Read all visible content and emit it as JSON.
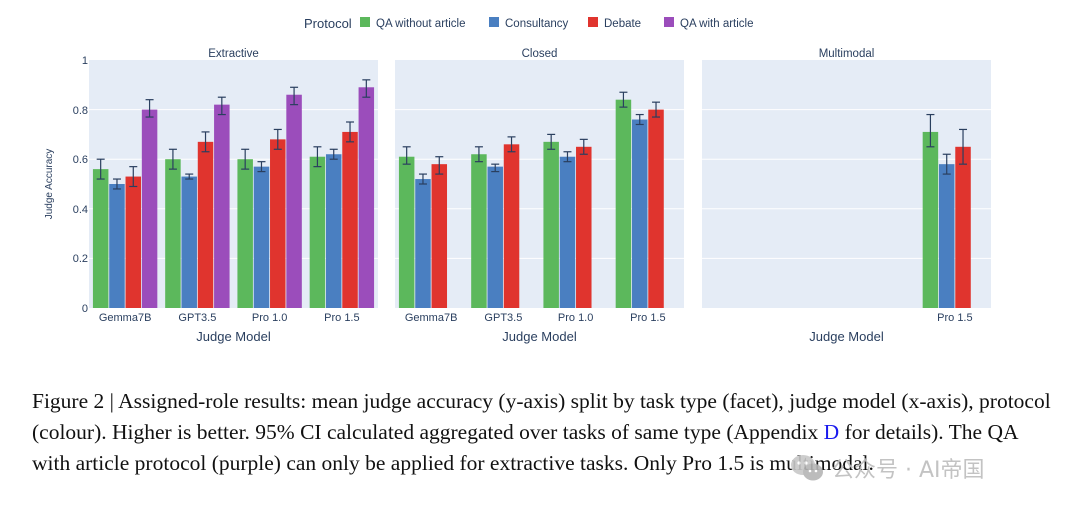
{
  "legend": {
    "title": "Protocol",
    "items": [
      {
        "name": "QA without article",
        "color": "#5cb85c"
      },
      {
        "name": "Consultancy",
        "color": "#4a7fc1"
      },
      {
        "name": "Debate",
        "color": "#e0342e"
      },
      {
        "name": "QA with article",
        "color": "#9b4dbb"
      }
    ]
  },
  "y_axis_title": "Judge Accuracy",
  "y_ticks": [
    "1",
    "0.8",
    "0.6",
    "0.4",
    "0.2",
    "0"
  ],
  "chart_data": [
    {
      "type": "bar",
      "facet": "Extractive",
      "xlabel": "Judge Model",
      "ylabel": "Judge Accuracy",
      "ylim": [
        0,
        1
      ],
      "categories": [
        "Gemma7B",
        "GPT3.5",
        "Pro 1.0",
        "Pro 1.5"
      ],
      "series": [
        {
          "name": "QA without article",
          "values": [
            0.56,
            0.6,
            0.6,
            0.61
          ],
          "ci": [
            [
              0.52,
              0.6
            ],
            [
              0.56,
              0.64
            ],
            [
              0.56,
              0.64
            ],
            [
              0.57,
              0.65
            ]
          ]
        },
        {
          "name": "Consultancy",
          "values": [
            0.5,
            0.53,
            0.57,
            0.62
          ],
          "ci": [
            [
              0.48,
              0.52
            ],
            [
              0.52,
              0.54
            ],
            [
              0.55,
              0.59
            ],
            [
              0.6,
              0.64
            ]
          ]
        },
        {
          "name": "Debate",
          "values": [
            0.53,
            0.67,
            0.68,
            0.71
          ],
          "ci": [
            [
              0.49,
              0.57
            ],
            [
              0.63,
              0.71
            ],
            [
              0.64,
              0.72
            ],
            [
              0.67,
              0.75
            ]
          ]
        },
        {
          "name": "QA with article",
          "values": [
            0.8,
            0.82,
            0.86,
            0.89
          ],
          "ci": [
            [
              0.77,
              0.84
            ],
            [
              0.78,
              0.85
            ],
            [
              0.82,
              0.89
            ],
            [
              0.85,
              0.92
            ]
          ]
        }
      ]
    },
    {
      "type": "bar",
      "facet": "Closed",
      "xlabel": "Judge Model",
      "ylim": [
        0,
        1
      ],
      "categories": [
        "Gemma7B",
        "GPT3.5",
        "Pro 1.0",
        "Pro 1.5"
      ],
      "series": [
        {
          "name": "QA without article",
          "values": [
            0.61,
            0.62,
            0.67,
            0.84
          ],
          "ci": [
            [
              0.58,
              0.65
            ],
            [
              0.59,
              0.65
            ],
            [
              0.64,
              0.7
            ],
            [
              0.81,
              0.87
            ]
          ]
        },
        {
          "name": "Consultancy",
          "values": [
            0.52,
            0.57,
            0.61,
            0.76
          ],
          "ci": [
            [
              0.5,
              0.54
            ],
            [
              0.55,
              0.58
            ],
            [
              0.59,
              0.63
            ],
            [
              0.74,
              0.78
            ]
          ]
        },
        {
          "name": "Debate",
          "values": [
            0.58,
            0.66,
            0.65,
            0.8
          ],
          "ci": [
            [
              0.54,
              0.61
            ],
            [
              0.63,
              0.69
            ],
            [
              0.62,
              0.68
            ],
            [
              0.77,
              0.83
            ]
          ]
        }
      ]
    },
    {
      "type": "bar",
      "facet": "Multimodal",
      "xlabel": "Judge Model",
      "ylim": [
        0,
        1
      ],
      "categories": [
        "Pro 1.5"
      ],
      "series": [
        {
          "name": "QA without article",
          "values": [
            0.71
          ],
          "ci": [
            [
              0.65,
              0.78
            ]
          ]
        },
        {
          "name": "Consultancy",
          "values": [
            0.58
          ],
          "ci": [
            [
              0.54,
              0.62
            ]
          ]
        },
        {
          "name": "Debate",
          "values": [
            0.65
          ],
          "ci": [
            [
              0.58,
              0.72
            ]
          ]
        }
      ]
    }
  ],
  "caption": {
    "before_ref": "Figure 2 | Assigned-role results: mean judge accuracy (y-axis) split by task type (facet), judge model (x-axis), protocol (colour). Higher is better. 95% CI calculated aggregated over tasks of same type (Appendix ",
    "ref": "D",
    "after_ref": " for details). The QA with article protocol (purple) can only be applied for extractive tasks. Only Pro 1.5 is multimodal."
  },
  "watermark": {
    "text": "公众号 · AI帝国",
    "icon": "wechat-icon"
  }
}
